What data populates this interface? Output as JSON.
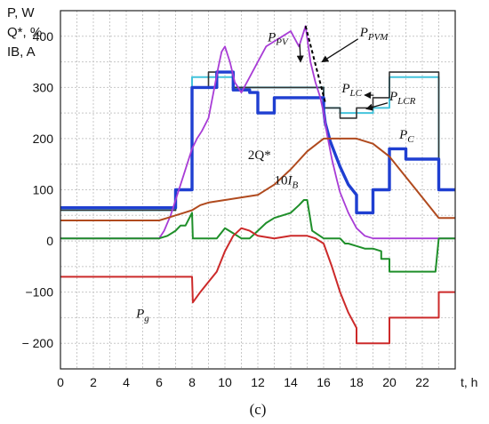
{
  "chart_data": {
    "type": "line",
    "panel_label": "(c)",
    "ylabel_lines": [
      "P, W",
      "Q*, %",
      "IB, A"
    ],
    "xlabel": "t, h",
    "xlim": [
      0,
      24
    ],
    "ylim": [
      -250,
      450
    ],
    "xticks": [
      0,
      2,
      4,
      6,
      8,
      10,
      12,
      14,
      16,
      18,
      20,
      22
    ],
    "yticks": [
      -200,
      -100,
      0,
      100,
      200,
      300,
      400
    ],
    "ytick_labels": [
      "− 200",
      "−100",
      "0",
      "100",
      "200",
      "300",
      "400"
    ],
    "grid": true,
    "series": [
      {
        "name": "P_LCR",
        "color": "#44c4dc",
        "width": 2,
        "dash": false,
        "x": [
          0,
          7,
          7,
          8,
          8,
          10.5,
          10.5,
          16,
          16,
          17,
          17,
          19,
          19,
          20,
          20,
          23,
          23,
          24
        ],
        "y": [
          60,
          60,
          100,
          100,
          320,
          320,
          300,
          300,
          260,
          260,
          250,
          250,
          260,
          260,
          320,
          320,
          100,
          100
        ]
      },
      {
        "name": "P_LC",
        "color": "#333333",
        "width": 1.6,
        "dash": false,
        "x": [
          0,
          7,
          7,
          8,
          8,
          9,
          9,
          10.5,
          10.5,
          16,
          16,
          17,
          17,
          18,
          18,
          19,
          19,
          20,
          20,
          23,
          23,
          24
        ],
        "y": [
          60,
          60,
          100,
          100,
          300,
          300,
          330,
          330,
          300,
          300,
          260,
          260,
          240,
          240,
          260,
          260,
          280,
          280,
          330,
          330,
          100,
          100
        ]
      },
      {
        "name": "P_C",
        "color": "#1f3fd1",
        "width": 3.4,
        "dash": false,
        "x": [
          0,
          7,
          7,
          8,
          8,
          9.5,
          9.5,
          10.5,
          10.5,
          11.5,
          11.5,
          12,
          12,
          13,
          13,
          16,
          16,
          16.1,
          16.4,
          16.7,
          17,
          17.5,
          18,
          18,
          19,
          19,
          20,
          20,
          21,
          21,
          23,
          23,
          24
        ],
        "y": [
          65,
          65,
          100,
          100,
          300,
          300,
          330,
          330,
          295,
          295,
          290,
          290,
          250,
          250,
          280,
          280,
          255,
          230,
          195,
          170,
          145,
          110,
          90,
          55,
          55,
          100,
          100,
          180,
          180,
          160,
          160,
          100,
          100
        ]
      },
      {
        "name": "P_PV",
        "color": "#a83cd6",
        "width": 1.8,
        "dash": false,
        "x": [
          0,
          6,
          6.3,
          6.7,
          7,
          7.5,
          8,
          8.3,
          8.6,
          9,
          9.3,
          9.6,
          9.8,
          10,
          10.3,
          10.6,
          11,
          11.5,
          12,
          12.5,
          13,
          13.5,
          14,
          14.5,
          14.9,
          15.2,
          15.5,
          15.8,
          16,
          16.2,
          16.5,
          16.8,
          17,
          17.5,
          18,
          18.5,
          19,
          20,
          21,
          22,
          23,
          24
        ],
        "y": [
          5,
          5,
          20,
          50,
          80,
          130,
          180,
          200,
          215,
          240,
          290,
          340,
          370,
          380,
          350,
          310,
          290,
          320,
          350,
          380,
          390,
          400,
          410,
          380,
          420,
          350,
          310,
          280,
          250,
          210,
          160,
          120,
          95,
          55,
          25,
          10,
          5,
          5,
          5,
          5,
          5,
          5
        ]
      },
      {
        "name": "P_PVM",
        "color": "#000000",
        "width": 2,
        "dash": true,
        "x": [
          14.9,
          16.1
        ],
        "y": [
          420,
          270
        ]
      },
      {
        "name": "2Q*",
        "color": "#b04a1e",
        "width": 2,
        "dash": false,
        "x": [
          0,
          6,
          6.5,
          7,
          7.5,
          8,
          8.5,
          9,
          10,
          11,
          12,
          13,
          14,
          15,
          16,
          17,
          18,
          19,
          20,
          21,
          22,
          23,
          24
        ],
        "y": [
          40,
          40,
          45,
          50,
          55,
          60,
          70,
          75,
          80,
          85,
          90,
          110,
          140,
          175,
          200,
          200,
          200,
          190,
          165,
          125,
          85,
          45,
          45
        ]
      },
      {
        "name": "10I_B",
        "color": "#1f8f2a",
        "width": 2,
        "dash": false,
        "x": [
          0,
          6,
          6.5,
          7,
          7.3,
          7.6,
          8,
          8.05,
          9,
          9.5,
          10,
          10.5,
          11,
          11.5,
          12,
          12.5,
          13,
          13.5,
          14,
          14.5,
          14.8,
          15,
          15.3,
          16,
          16.5,
          17,
          17.3,
          17.5,
          18,
          18.5,
          19,
          19.5,
          19.5,
          20,
          20,
          22,
          22.8,
          22.8,
          23,
          24
        ],
        "y": [
          5,
          5,
          10,
          20,
          30,
          30,
          55,
          5,
          5,
          5,
          25,
          15,
          5,
          5,
          20,
          35,
          45,
          50,
          55,
          70,
          80,
          80,
          20,
          5,
          5,
          5,
          -5,
          -5,
          -10,
          -15,
          -15,
          -20,
          -35,
          -35,
          -60,
          -60,
          -60,
          -60,
          5,
          5
        ]
      },
      {
        "name": "P_g",
        "color": "#cc2a2a",
        "width": 2,
        "dash": false,
        "x": [
          0,
          8,
          8.05,
          8.5,
          9,
          9.5,
          10,
          10.5,
          11,
          11.5,
          12,
          13,
          14,
          15,
          15.5,
          16,
          16.5,
          17,
          17.5,
          18,
          18,
          19,
          19,
          20,
          20,
          23,
          23,
          24
        ],
        "y": [
          -70,
          -70,
          -120,
          -100,
          -80,
          -60,
          -20,
          10,
          25,
          20,
          10,
          5,
          10,
          10,
          5,
          -5,
          -50,
          -100,
          -140,
          -170,
          -200,
          -200,
          -200,
          -200,
          -150,
          -150,
          -100,
          -100
        ]
      }
    ],
    "annotations": [
      {
        "series": "P_PV",
        "base": "P",
        "sub": "PV",
        "at": [
          12.6,
          390
        ],
        "arrow_to": [
          14.6,
          350
        ]
      },
      {
        "series": "P_PVM",
        "base": "P",
        "sub": "PVM",
        "at": [
          18.2,
          400
        ],
        "arrow_to": [
          15.9,
          350
        ]
      },
      {
        "series": "P_LC",
        "base": "P",
        "sub": "LC",
        "at": [
          17.1,
          290
        ],
        "arrow_to": [
          18.5,
          285
        ]
      },
      {
        "series": "P_LCR",
        "base": "P",
        "sub": "LCR",
        "at": [
          20.0,
          275
        ],
        "arrow_to": [
          18.6,
          258
        ]
      },
      {
        "series": "P_C",
        "base": "P",
        "sub": "C",
        "at": [
          20.6,
          200
        ],
        "arrow_to": null
      },
      {
        "series": "2Q*",
        "base": "2Q*",
        "sub": "",
        "at": [
          11.4,
          160
        ],
        "arrow_to": null
      },
      {
        "series": "10I_B",
        "base": "10I",
        "sub": "B",
        "at": [
          13.0,
          110
        ],
        "arrow_to": null
      },
      {
        "series": "P_g",
        "base": "P",
        "sub": "g",
        "at": [
          4.6,
          -150
        ],
        "arrow_to": null
      }
    ]
  }
}
